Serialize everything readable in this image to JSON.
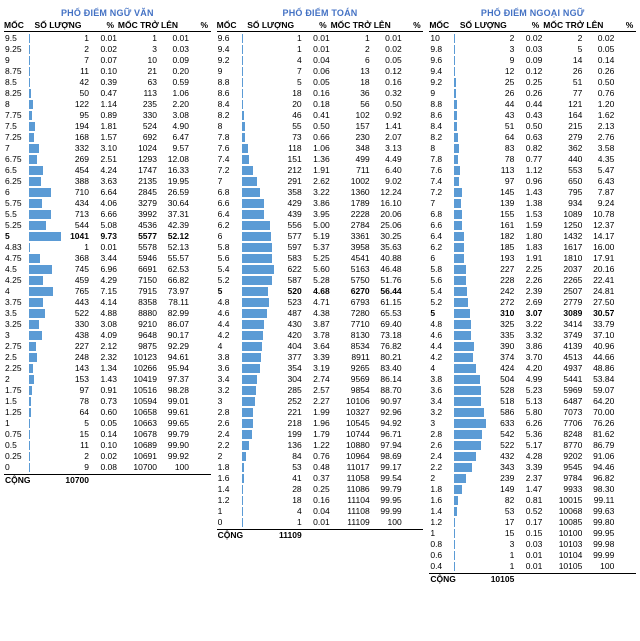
{
  "bar_color": "#5b9bd5",
  "header": {
    "moc": "MỐC",
    "so_luong": "SỐ LƯỢNG",
    "pct": "%",
    "moc_tro_len": "MỐC TRỞ LÊN",
    "cpct": "%"
  },
  "total_label": "CỘNG",
  "tables": [
    {
      "title": "PHỔ ĐIỂM NGỮ VĂN",
      "max_sl": 1041,
      "total": "10700",
      "rows": [
        {
          "m": "9.5",
          "s": 1,
          "p": "0.01",
          "c": 1,
          "cp": "0.01"
        },
        {
          "m": "9.25",
          "s": 2,
          "p": "0.02",
          "c": 3,
          "cp": "0.03"
        },
        {
          "m": "9",
          "s": 7,
          "p": "0.07",
          "c": 10,
          "cp": "0.09"
        },
        {
          "m": "8.75",
          "s": 11,
          "p": "0.10",
          "c": 21,
          "cp": "0.20"
        },
        {
          "m": "8.5",
          "s": 42,
          "p": "0.39",
          "c": 63,
          "cp": "0.59"
        },
        {
          "m": "8.25",
          "s": 50,
          "p": "0.47",
          "c": 113,
          "cp": "1.06"
        },
        {
          "m": "8",
          "s": 122,
          "p": "1.14",
          "c": 235,
          "cp": "2.20"
        },
        {
          "m": "7.75",
          "s": 95,
          "p": "0.89",
          "c": 330,
          "cp": "3.08"
        },
        {
          "m": "7.5",
          "s": 194,
          "p": "1.81",
          "c": 524,
          "cp": "4.90"
        },
        {
          "m": "7.25",
          "s": 168,
          "p": "1.57",
          "c": 692,
          "cp": "6.47"
        },
        {
          "m": "7",
          "s": 332,
          "p": "3.10",
          "c": 1024,
          "cp": "9.57"
        },
        {
          "m": "6.75",
          "s": 269,
          "p": "2.51",
          "c": 1293,
          "cp": "12.08"
        },
        {
          "m": "6.5",
          "s": 454,
          "p": "4.24",
          "c": 1747,
          "cp": "16.33"
        },
        {
          "m": "6.25",
          "s": 388,
          "p": "3.63",
          "c": 2135,
          "cp": "19.95"
        },
        {
          "m": "6",
          "s": 710,
          "p": "6.64",
          "c": 2845,
          "cp": "26.59"
        },
        {
          "m": "5.75",
          "s": 434,
          "p": "4.06",
          "c": 3279,
          "cp": "30.64"
        },
        {
          "m": "5.5",
          "s": 713,
          "p": "6.66",
          "c": 3992,
          "cp": "37.31"
        },
        {
          "m": "5.25",
          "s": 544,
          "p": "5.08",
          "c": 4536,
          "cp": "42.39"
        },
        {
          "m": "5",
          "s": 1041,
          "p": "9.73",
          "c": 5577,
          "cp": "52.12",
          "b": true
        },
        {
          "m": "4.83",
          "s": 1,
          "p": "0.01",
          "c": 5578,
          "cp": "52.13"
        },
        {
          "m": "4.75",
          "s": 368,
          "p": "3.44",
          "c": 5946,
          "cp": "55.57"
        },
        {
          "m": "4.5",
          "s": 745,
          "p": "6.96",
          "c": 6691,
          "cp": "62.53"
        },
        {
          "m": "4.25",
          "s": 459,
          "p": "4.29",
          "c": 7150,
          "cp": "66.82"
        },
        {
          "m": "4",
          "s": 765,
          "p": "7.15",
          "c": 7915,
          "cp": "73.97"
        },
        {
          "m": "3.75",
          "s": 443,
          "p": "4.14",
          "c": 8358,
          "cp": "78.11"
        },
        {
          "m": "3.5",
          "s": 522,
          "p": "4.88",
          "c": 8880,
          "cp": "82.99"
        },
        {
          "m": "3.25",
          "s": 330,
          "p": "3.08",
          "c": 9210,
          "cp": "86.07"
        },
        {
          "m": "3",
          "s": 438,
          "p": "4.09",
          "c": 9648,
          "cp": "90.17"
        },
        {
          "m": "2.75",
          "s": 227,
          "p": "2.12",
          "c": 9875,
          "cp": "92.29"
        },
        {
          "m": "2.5",
          "s": 248,
          "p": "2.32",
          "c": 10123,
          "cp": "94.61"
        },
        {
          "m": "2.25",
          "s": 143,
          "p": "1.34",
          "c": 10266,
          "cp": "95.94"
        },
        {
          "m": "2",
          "s": 153,
          "p": "1.43",
          "c": 10419,
          "cp": "97.37"
        },
        {
          "m": "1.75",
          "s": 97,
          "p": "0.91",
          "c": 10516,
          "cp": "98.28"
        },
        {
          "m": "1.5",
          "s": 78,
          "p": "0.73",
          "c": 10594,
          "cp": "99.01"
        },
        {
          "m": "1.25",
          "s": 64,
          "p": "0.60",
          "c": 10658,
          "cp": "99.61"
        },
        {
          "m": "1",
          "s": 5,
          "p": "0.05",
          "c": 10663,
          "cp": "99.65"
        },
        {
          "m": "0.75",
          "s": 15,
          "p": "0.14",
          "c": 10678,
          "cp": "99.79"
        },
        {
          "m": "0.5",
          "s": 11,
          "p": "0.10",
          "c": 10689,
          "cp": "99.90"
        },
        {
          "m": "0.25",
          "s": 2,
          "p": "0.02",
          "c": 10691,
          "cp": "99.92"
        },
        {
          "m": "0",
          "s": 9,
          "p": "0.08",
          "c": 10700,
          "cp": "100"
        }
      ]
    },
    {
      "title": "PHỔ ĐIỂM TOÁN",
      "max_sl": 622,
      "total": "11109",
      "rows": [
        {
          "m": "9.6",
          "s": 1,
          "p": "0.01",
          "c": 1,
          "cp": "0.01"
        },
        {
          "m": "9.4",
          "s": 1,
          "p": "0.01",
          "c": 2,
          "cp": "0.02"
        },
        {
          "m": "9.2",
          "s": 4,
          "p": "0.04",
          "c": 6,
          "cp": "0.05"
        },
        {
          "m": "9",
          "s": 7,
          "p": "0.06",
          "c": 13,
          "cp": "0.12"
        },
        {
          "m": "8.8",
          "s": 5,
          "p": "0.05",
          "c": 18,
          "cp": "0.16"
        },
        {
          "m": "8.6",
          "s": 18,
          "p": "0.16",
          "c": 36,
          "cp": "0.32"
        },
        {
          "m": "8.4",
          "s": 20,
          "p": "0.18",
          "c": 56,
          "cp": "0.50"
        },
        {
          "m": "8.2",
          "s": 46,
          "p": "0.41",
          "c": 102,
          "cp": "0.92"
        },
        {
          "m": "8",
          "s": 55,
          "p": "0.50",
          "c": 157,
          "cp": "1.41"
        },
        {
          "m": "7.8",
          "s": 73,
          "p": "0.66",
          "c": 230,
          "cp": "2.07"
        },
        {
          "m": "7.6",
          "s": 118,
          "p": "1.06",
          "c": 348,
          "cp": "3.13"
        },
        {
          "m": "7.4",
          "s": 151,
          "p": "1.36",
          "c": 499,
          "cp": "4.49"
        },
        {
          "m": "7.2",
          "s": 212,
          "p": "1.91",
          "c": 711,
          "cp": "6.40"
        },
        {
          "m": "7",
          "s": 291,
          "p": "2.62",
          "c": 1002,
          "cp": "9.02"
        },
        {
          "m": "6.8",
          "s": 358,
          "p": "3.22",
          "c": 1360,
          "cp": "12.24"
        },
        {
          "m": "6.6",
          "s": 429,
          "p": "3.86",
          "c": 1789,
          "cp": "16.10"
        },
        {
          "m": "6.4",
          "s": 439,
          "p": "3.95",
          "c": 2228,
          "cp": "20.06"
        },
        {
          "m": "6.2",
          "s": 556,
          "p": "5.00",
          "c": 2784,
          "cp": "25.06"
        },
        {
          "m": "6",
          "s": 577,
          "p": "5.19",
          "c": 3361,
          "cp": "30.25"
        },
        {
          "m": "5.8",
          "s": 597,
          "p": "5.37",
          "c": 3958,
          "cp": "35.63"
        },
        {
          "m": "5.6",
          "s": 583,
          "p": "5.25",
          "c": 4541,
          "cp": "40.88"
        },
        {
          "m": "5.4",
          "s": 622,
          "p": "5.60",
          "c": 5163,
          "cp": "46.48"
        },
        {
          "m": "5.2",
          "s": 587,
          "p": "5.28",
          "c": 5750,
          "cp": "51.76"
        },
        {
          "m": "5",
          "s": 520,
          "p": "4.68",
          "c": 6270,
          "cp": "56.44",
          "b": true
        },
        {
          "m": "4.8",
          "s": 523,
          "p": "4.71",
          "c": 6793,
          "cp": "61.15"
        },
        {
          "m": "4.6",
          "s": 487,
          "p": "4.38",
          "c": 7280,
          "cp": "65.53"
        },
        {
          "m": "4.4",
          "s": 430,
          "p": "3.87",
          "c": 7710,
          "cp": "69.40"
        },
        {
          "m": "4.2",
          "s": 420,
          "p": "3.78",
          "c": 8130,
          "cp": "73.18"
        },
        {
          "m": "4",
          "s": 404,
          "p": "3.64",
          "c": 8534,
          "cp": "76.82"
        },
        {
          "m": "3.8",
          "s": 377,
          "p": "3.39",
          "c": 8911,
          "cp": "80.21"
        },
        {
          "m": "3.6",
          "s": 354,
          "p": "3.19",
          "c": 9265,
          "cp": "83.40"
        },
        {
          "m": "3.4",
          "s": 304,
          "p": "2.74",
          "c": 9569,
          "cp": "86.14"
        },
        {
          "m": "3.2",
          "s": 285,
          "p": "2.57",
          "c": 9854,
          "cp": "88.70"
        },
        {
          "m": "3",
          "s": 252,
          "p": "2.27",
          "c": 10106,
          "cp": "90.97"
        },
        {
          "m": "2.8",
          "s": 221,
          "p": "1.99",
          "c": 10327,
          "cp": "92.96"
        },
        {
          "m": "2.6",
          "s": 218,
          "p": "1.96",
          "c": 10545,
          "cp": "94.92"
        },
        {
          "m": "2.4",
          "s": 199,
          "p": "1.79",
          "c": 10744,
          "cp": "96.71"
        },
        {
          "m": "2.2",
          "s": 136,
          "p": "1.22",
          "c": 10880,
          "cp": "97.94"
        },
        {
          "m": "2",
          "s": 84,
          "p": "0.76",
          "c": 10964,
          "cp": "98.69"
        },
        {
          "m": "1.8",
          "s": 53,
          "p": "0.48",
          "c": 11017,
          "cp": "99.17"
        },
        {
          "m": "1.6",
          "s": 41,
          "p": "0.37",
          "c": 11058,
          "cp": "99.54"
        },
        {
          "m": "1.4",
          "s": 28,
          "p": "0.25",
          "c": 11086,
          "cp": "99.79"
        },
        {
          "m": "1.2",
          "s": 18,
          "p": "0.16",
          "c": 11104,
          "cp": "99.95"
        },
        {
          "m": "1",
          "s": 4,
          "p": "0.04",
          "c": 11108,
          "cp": "99.99"
        },
        {
          "m": "0",
          "s": 1,
          "p": "0.01",
          "c": 11109,
          "cp": "100"
        }
      ]
    },
    {
      "title": "PHỔ ĐIỂM NGOẠI NGỮ",
      "max_sl": 633,
      "total": "10105",
      "rows": [
        {
          "m": "10",
          "s": 2,
          "p": "0.02",
          "c": 2,
          "cp": "0.02"
        },
        {
          "m": "9.8",
          "s": 3,
          "p": "0.03",
          "c": 5,
          "cp": "0.05"
        },
        {
          "m": "9.6",
          "s": 9,
          "p": "0.09",
          "c": 14,
          "cp": "0.14"
        },
        {
          "m": "9.4",
          "s": 12,
          "p": "0.12",
          "c": 26,
          "cp": "0.26"
        },
        {
          "m": "9.2",
          "s": 25,
          "p": "0.25",
          "c": 51,
          "cp": "0.50"
        },
        {
          "m": "9",
          "s": 26,
          "p": "0.26",
          "c": 77,
          "cp": "0.76"
        },
        {
          "m": "8.8",
          "s": 44,
          "p": "0.44",
          "c": 121,
          "cp": "1.20"
        },
        {
          "m": "8.6",
          "s": 43,
          "p": "0.43",
          "c": 164,
          "cp": "1.62"
        },
        {
          "m": "8.4",
          "s": 51,
          "p": "0.50",
          "c": 215,
          "cp": "2.13"
        },
        {
          "m": "8.2",
          "s": 64,
          "p": "0.63",
          "c": 279,
          "cp": "2.76"
        },
        {
          "m": "8",
          "s": 83,
          "p": "0.82",
          "c": 362,
          "cp": "3.58"
        },
        {
          "m": "7.8",
          "s": 78,
          "p": "0.77",
          "c": 440,
          "cp": "4.35"
        },
        {
          "m": "7.6",
          "s": 113,
          "p": "1.12",
          "c": 553,
          "cp": "5.47"
        },
        {
          "m": "7.4",
          "s": 97,
          "p": "0.96",
          "c": 650,
          "cp": "6.43"
        },
        {
          "m": "7.2",
          "s": 145,
          "p": "1.43",
          "c": 795,
          "cp": "7.87"
        },
        {
          "m": "7",
          "s": 139,
          "p": "1.38",
          "c": 934,
          "cp": "9.24"
        },
        {
          "m": "6.8",
          "s": 155,
          "p": "1.53",
          "c": 1089,
          "cp": "10.78"
        },
        {
          "m": "6.6",
          "s": 161,
          "p": "1.59",
          "c": 1250,
          "cp": "12.37"
        },
        {
          "m": "6.4",
          "s": 182,
          "p": "1.80",
          "c": 1432,
          "cp": "14.17"
        },
        {
          "m": "6.2",
          "s": 185,
          "p": "1.83",
          "c": 1617,
          "cp": "16.00"
        },
        {
          "m": "6",
          "s": 193,
          "p": "1.91",
          "c": 1810,
          "cp": "17.91"
        },
        {
          "m": "5.8",
          "s": 227,
          "p": "2.25",
          "c": 2037,
          "cp": "20.16"
        },
        {
          "m": "5.6",
          "s": 228,
          "p": "2.26",
          "c": 2265,
          "cp": "22.41"
        },
        {
          "m": "5.4",
          "s": 242,
          "p": "2.39",
          "c": 2507,
          "cp": "24.81"
        },
        {
          "m": "5.2",
          "s": 272,
          "p": "2.69",
          "c": 2779,
          "cp": "27.50"
        },
        {
          "m": "5",
          "s": 310,
          "p": "3.07",
          "c": 3089,
          "cp": "30.57",
          "b": true
        },
        {
          "m": "4.8",
          "s": 325,
          "p": "3.22",
          "c": 3414,
          "cp": "33.79"
        },
        {
          "m": "4.6",
          "s": 335,
          "p": "3.32",
          "c": 3749,
          "cp": "37.10"
        },
        {
          "m": "4.4",
          "s": 390,
          "p": "3.86",
          "c": 4139,
          "cp": "40.96"
        },
        {
          "m": "4.2",
          "s": 374,
          "p": "3.70",
          "c": 4513,
          "cp": "44.66"
        },
        {
          "m": "4",
          "s": 424,
          "p": "4.20",
          "c": 4937,
          "cp": "48.86"
        },
        {
          "m": "3.8",
          "s": 504,
          "p": "4.99",
          "c": 5441,
          "cp": "53.84"
        },
        {
          "m": "3.6",
          "s": 528,
          "p": "5.23",
          "c": 5969,
          "cp": "59.07"
        },
        {
          "m": "3.4",
          "s": 518,
          "p": "5.13",
          "c": 6487,
          "cp": "64.20"
        },
        {
          "m": "3.2",
          "s": 586,
          "p": "5.80",
          "c": 7073,
          "cp": "70.00"
        },
        {
          "m": "3",
          "s": 633,
          "p": "6.26",
          "c": 7706,
          "cp": "76.26"
        },
        {
          "m": "2.8",
          "s": 542,
          "p": "5.36",
          "c": 8248,
          "cp": "81.62"
        },
        {
          "m": "2.6",
          "s": 522,
          "p": "5.17",
          "c": 8770,
          "cp": "86.79"
        },
        {
          "m": "2.4",
          "s": 432,
          "p": "4.28",
          "c": 9202,
          "cp": "91.06"
        },
        {
          "m": "2.2",
          "s": 343,
          "p": "3.39",
          "c": 9545,
          "cp": "94.46"
        },
        {
          "m": "2",
          "s": 239,
          "p": "2.37",
          "c": 9784,
          "cp": "96.82"
        },
        {
          "m": "1.8",
          "s": 149,
          "p": "1.47",
          "c": 9933,
          "cp": "98.30"
        },
        {
          "m": "1.6",
          "s": 82,
          "p": "0.81",
          "c": 10015,
          "cp": "99.11"
        },
        {
          "m": "1.4",
          "s": 53,
          "p": "0.52",
          "c": 10068,
          "cp": "99.63"
        },
        {
          "m": "1.2",
          "s": 17,
          "p": "0.17",
          "c": 10085,
          "cp": "99.80"
        },
        {
          "m": "1",
          "s": 15,
          "p": "0.15",
          "c": 10100,
          "cp": "99.95"
        },
        {
          "m": "0.8",
          "s": 3,
          "p": "0.03",
          "c": 10103,
          "cp": "99.98"
        },
        {
          "m": "0.6",
          "s": 1,
          "p": "0.01",
          "c": 10104,
          "cp": "99.99"
        },
        {
          "m": "0.4",
          "s": 1,
          "p": "0.01",
          "c": 10105,
          "cp": "100"
        }
      ]
    }
  ]
}
